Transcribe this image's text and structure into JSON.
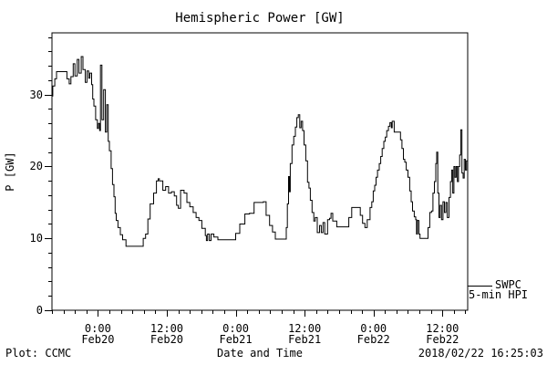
{
  "title": "Hemispheric Power [GW]",
  "footer": {
    "left": "Plot: CCMC",
    "right": "2018/02/22 16:25:03"
  },
  "legend": {
    "line1": "SWPC",
    "line2": "5-min HPI"
  },
  "colors": {
    "line": "#000000",
    "axis": "#000000",
    "text": "#000000",
    "background": "#ffffff"
  },
  "chart_data": {
    "type": "line",
    "step": true,
    "title": "Hemispheric Power [GW]",
    "xlabel": "Date and Time",
    "ylabel": "P [GW]",
    "x_unit": "hours since start of plot (~16:00 UT Feb 19 2018)",
    "xlim_hours": [
      0,
      72.4
    ],
    "ylim": [
      0,
      38.6
    ],
    "grid": false,
    "yticks_major": [
      0,
      10,
      20,
      30
    ],
    "ytick_minor_step": 2,
    "xticks_major": [
      {
        "t": 8,
        "time": "0:00",
        "date": "Feb20"
      },
      {
        "t": 20,
        "time": "12:00",
        "date": "Feb20"
      },
      {
        "t": 32,
        "time": "0:00",
        "date": "Feb21"
      },
      {
        "t": 44,
        "time": "12:00",
        "date": "Feb21"
      },
      {
        "t": 56,
        "time": "0:00",
        "date": "Feb22"
      },
      {
        "t": 68,
        "time": "12:00",
        "date": "Feb22"
      }
    ],
    "xtick_minor_step": 2,
    "legend_position": "outside-right",
    "series": [
      {
        "name": "SWPC 5-min HPI",
        "points": [
          [
            0,
            29.8
          ],
          [
            0.15,
            31.2
          ],
          [
            0.5,
            32.2
          ],
          [
            0.8,
            33.2
          ],
          [
            2.2,
            33.2
          ],
          [
            2.6,
            32.2
          ],
          [
            3.0,
            31.5
          ],
          [
            3.3,
            32.5
          ],
          [
            3.7,
            34.3
          ],
          [
            4.0,
            32.6
          ],
          [
            4.4,
            34.9
          ],
          [
            4.7,
            33.0
          ],
          [
            5.1,
            35.3
          ],
          [
            5.4,
            33.5
          ],
          [
            5.8,
            31.7
          ],
          [
            6.1,
            33.3
          ],
          [
            6.4,
            32.3
          ],
          [
            6.6,
            33.0
          ],
          [
            6.9,
            31.4
          ],
          [
            7.1,
            29.4
          ],
          [
            7.3,
            28.4
          ],
          [
            7.6,
            26.5
          ],
          [
            7.9,
            25.3
          ],
          [
            8.1,
            26.0
          ],
          [
            8.3,
            25.0
          ],
          [
            8.45,
            34.1
          ],
          [
            8.7,
            26.5
          ],
          [
            9.0,
            30.7
          ],
          [
            9.3,
            24.8
          ],
          [
            9.55,
            28.6
          ],
          [
            9.8,
            23.5
          ],
          [
            10.0,
            22.2
          ],
          [
            10.3,
            19.7
          ],
          [
            10.55,
            17.5
          ],
          [
            10.8,
            15.8
          ],
          [
            11.0,
            13.5
          ],
          [
            11.2,
            12.5
          ],
          [
            11.5,
            11.5
          ],
          [
            11.9,
            10.5
          ],
          [
            12.3,
            9.8
          ],
          [
            12.9,
            8.9
          ],
          [
            15.6,
            8.9
          ],
          [
            15.9,
            10.0
          ],
          [
            16.3,
            10.6
          ],
          [
            16.7,
            12.7
          ],
          [
            17.1,
            14.8
          ],
          [
            17.7,
            16.3
          ],
          [
            18.2,
            18.0
          ],
          [
            18.5,
            18.3
          ],
          [
            18.7,
            18.0
          ],
          [
            19.3,
            16.7
          ],
          [
            19.8,
            17.2
          ],
          [
            20.3,
            16.3
          ],
          [
            20.8,
            16.5
          ],
          [
            21.3,
            15.9
          ],
          [
            21.7,
            14.6
          ],
          [
            22.0,
            14.2
          ],
          [
            22.4,
            16.7
          ],
          [
            23.0,
            16.3
          ],
          [
            23.5,
            15.0
          ],
          [
            24.0,
            14.4
          ],
          [
            24.6,
            13.6
          ],
          [
            25.1,
            12.9
          ],
          [
            25.6,
            12.5
          ],
          [
            26.1,
            11.4
          ],
          [
            26.7,
            10.4
          ],
          [
            26.9,
            9.7
          ],
          [
            27.1,
            10.6
          ],
          [
            27.4,
            9.7
          ],
          [
            27.7,
            10.6
          ],
          [
            28.2,
            10.2
          ],
          [
            28.9,
            9.8
          ],
          [
            31.3,
            9.8
          ],
          [
            32.0,
            10.7
          ],
          [
            32.7,
            12.0
          ],
          [
            33.6,
            13.4
          ],
          [
            34.4,
            13.5
          ],
          [
            35.2,
            15.0
          ],
          [
            36.8,
            15.1
          ],
          [
            37.3,
            13.2
          ],
          [
            37.9,
            11.8
          ],
          [
            38.4,
            10.9
          ],
          [
            38.9,
            9.9
          ],
          [
            40.3,
            9.9
          ],
          [
            40.8,
            11.5
          ],
          [
            41.0,
            14.8
          ],
          [
            41.2,
            18.6
          ],
          [
            41.35,
            16.5
          ],
          [
            41.5,
            20.4
          ],
          [
            41.8,
            23.0
          ],
          [
            42.1,
            24.2
          ],
          [
            42.4,
            25.5
          ],
          [
            42.65,
            26.8
          ],
          [
            42.9,
            27.2
          ],
          [
            43.15,
            25.4
          ],
          [
            43.4,
            26.3
          ],
          [
            43.65,
            25.0
          ],
          [
            43.9,
            23.0
          ],
          [
            44.2,
            20.8
          ],
          [
            44.5,
            17.8
          ],
          [
            44.75,
            17.0
          ],
          [
            45.0,
            15.3
          ],
          [
            45.3,
            13.6
          ],
          [
            45.6,
            12.4
          ],
          [
            45.85,
            12.9
          ],
          [
            46.2,
            10.8
          ],
          [
            46.6,
            11.8
          ],
          [
            46.9,
            10.8
          ],
          [
            47.2,
            12.2
          ],
          [
            47.5,
            10.6
          ],
          [
            48.0,
            12.6
          ],
          [
            48.35,
            12.8
          ],
          [
            48.6,
            13.5
          ],
          [
            48.9,
            12.4
          ],
          [
            49.6,
            11.6
          ],
          [
            51.2,
            11.6
          ],
          [
            51.7,
            12.9
          ],
          [
            52.2,
            14.3
          ],
          [
            53.3,
            14.3
          ],
          [
            53.7,
            13.2
          ],
          [
            54.1,
            12.1
          ],
          [
            54.5,
            11.5
          ],
          [
            54.9,
            12.6
          ],
          [
            55.4,
            14.3
          ],
          [
            55.7,
            15.1
          ],
          [
            55.95,
            16.6
          ],
          [
            56.2,
            17.4
          ],
          [
            56.45,
            18.5
          ],
          [
            56.7,
            19.5
          ],
          [
            57.0,
            20.4
          ],
          [
            57.25,
            21.4
          ],
          [
            57.5,
            22.5
          ],
          [
            57.8,
            23.5
          ],
          [
            58.05,
            24.1
          ],
          [
            58.3,
            25.0
          ],
          [
            58.6,
            25.6
          ],
          [
            58.85,
            26.1
          ],
          [
            59.1,
            25.4
          ],
          [
            59.25,
            26.3
          ],
          [
            59.6,
            24.8
          ],
          [
            60.4,
            24.8
          ],
          [
            60.7,
            23.7
          ],
          [
            60.95,
            22.5
          ],
          [
            61.2,
            21.0
          ],
          [
            61.45,
            20.6
          ],
          [
            61.7,
            19.5
          ],
          [
            62.0,
            18.5
          ],
          [
            62.3,
            16.6
          ],
          [
            62.55,
            15.1
          ],
          [
            62.8,
            13.8
          ],
          [
            63.1,
            13.0
          ],
          [
            63.35,
            12.6
          ],
          [
            63.5,
            10.6
          ],
          [
            63.65,
            12.5
          ],
          [
            63.9,
            10.6
          ],
          [
            64.1,
            10.0
          ],
          [
            65.2,
            10.0
          ],
          [
            65.5,
            11.5
          ],
          [
            65.8,
            13.6
          ],
          [
            66.1,
            13.8
          ],
          [
            66.35,
            16.3
          ],
          [
            66.6,
            17.9
          ],
          [
            66.85,
            20.4
          ],
          [
            67.0,
            22.0
          ],
          [
            67.2,
            16.3
          ],
          [
            67.4,
            12.9
          ],
          [
            67.6,
            14.6
          ],
          [
            67.85,
            12.6
          ],
          [
            68.1,
            15.1
          ],
          [
            68.35,
            13.6
          ],
          [
            68.6,
            15.0
          ],
          [
            68.85,
            12.9
          ],
          [
            69.15,
            15.7
          ],
          [
            69.4,
            17.9
          ],
          [
            69.6,
            19.5
          ],
          [
            69.8,
            16.3
          ],
          [
            70.0,
            20.0
          ],
          [
            70.2,
            18.5
          ],
          [
            70.4,
            20.0
          ],
          [
            70.6,
            17.9
          ],
          [
            70.8,
            20.0
          ],
          [
            71.0,
            21.6
          ],
          [
            71.2,
            25.1
          ],
          [
            71.4,
            19.1
          ],
          [
            71.6,
            18.4
          ],
          [
            71.8,
            21.0
          ],
          [
            72.0,
            19.5
          ],
          [
            72.2,
            20.8
          ],
          [
            72.4,
            20.5
          ]
        ]
      }
    ]
  }
}
